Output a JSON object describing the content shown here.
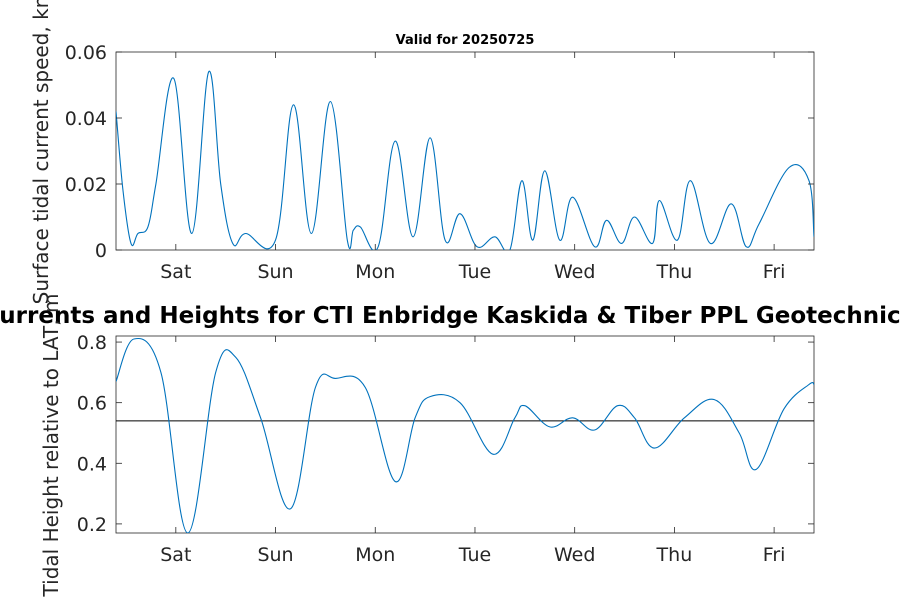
{
  "chart_data": [
    {
      "type": "line",
      "title": "Valid for 20250725",
      "ylabel": "Surface tidal current speed, kn",
      "xlabel": "",
      "ylim": [
        0,
        0.06
      ],
      "yticks": [
        0,
        0.02,
        0.04,
        0.06
      ],
      "ytick_labels": [
        "0",
        "0.02",
        "0.04",
        "0.06"
      ],
      "grid": false,
      "color": "#0072BD",
      "xlim": [
        0,
        7.0
      ],
      "xticks": [
        0.6,
        1.6,
        2.6,
        3.6,
        4.6,
        5.6,
        6.6
      ],
      "xtick_labels": [
        "Sat",
        "Sun",
        "Mon",
        "Tue",
        "Wed",
        "Thu",
        "Fri"
      ],
      "series": [
        {
          "x": [
            0.0,
            0.07,
            0.15,
            0.22,
            0.32,
            0.4,
            0.58,
            0.76,
            0.93,
            1.05,
            1.17,
            1.3,
            1.6,
            1.78,
            1.96,
            2.15,
            2.32,
            2.38,
            2.45,
            2.63,
            2.8,
            2.98,
            3.15,
            3.3,
            3.45,
            3.62,
            3.8,
            3.95,
            4.07,
            4.18,
            4.3,
            4.45,
            4.58,
            4.8,
            4.92,
            5.07,
            5.2,
            5.38,
            5.45,
            5.63,
            5.76,
            5.96,
            6.17,
            6.32,
            6.45,
            6.75,
            6.95,
            7.0
          ],
          "y": [
            0.042,
            0.018,
            0.002,
            0.005,
            0.007,
            0.02,
            0.052,
            0.005,
            0.054,
            0.02,
            0.002,
            0.005,
            0.003,
            0.044,
            0.005,
            0.045,
            0.003,
            0.006,
            0.007,
            0.001,
            0.033,
            0.004,
            0.034,
            0.003,
            0.011,
            0.001,
            0.004,
            0.0,
            0.021,
            0.003,
            0.024,
            0.003,
            0.016,
            0.001,
            0.009,
            0.002,
            0.01,
            0.002,
            0.015,
            0.003,
            0.021,
            0.002,
            0.014,
            0.001,
            0.008,
            0.025,
            0.021,
            0.004
          ]
        }
      ]
    },
    {
      "type": "line",
      "title": "Currents and Heights for CTI Enbridge  Kaskida & Tiber PPL Geotechnical a",
      "ylabel": "Tidal Height relative to LAT, m",
      "xlabel": "",
      "ylim": [
        0.17,
        0.82
      ],
      "yticks": [
        0.2,
        0.4,
        0.6,
        0.8
      ],
      "ytick_labels": [
        "0.2",
        "0.4",
        "0.6",
        "0.8"
      ],
      "reference_line": 0.54,
      "grid": false,
      "color": "#0072BD",
      "xlim": [
        0,
        7.0
      ],
      "xticks": [
        0.6,
        1.6,
        2.6,
        3.6,
        4.6,
        5.6,
        6.6
      ],
      "xtick_labels": [
        "Sat",
        "Sun",
        "Mon",
        "Tue",
        "Wed",
        "Thu",
        "Fri"
      ],
      "series": [
        {
          "x": [
            0.0,
            0.18,
            0.45,
            0.72,
            1.0,
            1.2,
            1.45,
            1.75,
            2.0,
            2.2,
            2.5,
            2.8,
            3.0,
            3.15,
            3.45,
            3.78,
            4.0,
            4.1,
            4.35,
            4.58,
            4.8,
            5.03,
            5.2,
            5.4,
            5.7,
            6.0,
            6.25,
            6.42,
            6.7,
            6.95,
            7.0
          ],
          "y": [
            0.67,
            0.81,
            0.7,
            0.17,
            0.7,
            0.75,
            0.55,
            0.25,
            0.65,
            0.68,
            0.65,
            0.34,
            0.55,
            0.62,
            0.6,
            0.43,
            0.55,
            0.59,
            0.52,
            0.55,
            0.51,
            0.59,
            0.55,
            0.45,
            0.55,
            0.61,
            0.5,
            0.38,
            0.58,
            0.66,
            0.66
          ]
        }
      ]
    }
  ]
}
